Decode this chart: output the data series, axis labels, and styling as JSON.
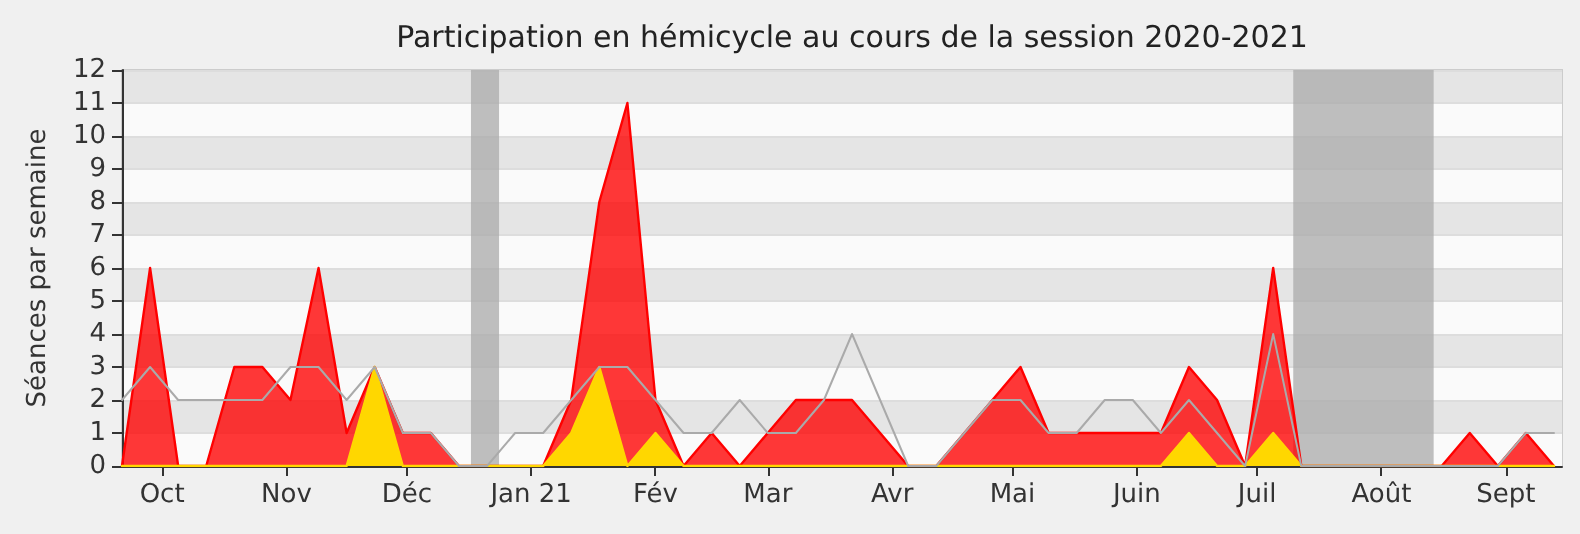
{
  "chart_data": {
    "type": "area",
    "title": "Participation en hémicycle au cours de la session 2020-2021",
    "ylabel": "Séances par semaine",
    "x": [
      "2020-09-21",
      "2020-09-28",
      "2020-10-05",
      "2020-10-12",
      "2020-10-19",
      "2020-10-26",
      "2020-11-02",
      "2020-11-09",
      "2020-11-16",
      "2020-11-23",
      "2020-11-30",
      "2020-12-07",
      "2020-12-14",
      "2020-12-21",
      "2020-12-28",
      "2021-01-04",
      "2021-01-11",
      "2021-01-18",
      "2021-01-25",
      "2021-02-01",
      "2021-02-08",
      "2021-02-15",
      "2021-02-22",
      "2021-03-01",
      "2021-03-08",
      "2021-03-15",
      "2021-03-22",
      "2021-03-29",
      "2021-04-05",
      "2021-04-12",
      "2021-04-19",
      "2021-04-26",
      "2021-05-03",
      "2021-05-10",
      "2021-05-17",
      "2021-05-24",
      "2021-05-31",
      "2021-06-07",
      "2021-06-14",
      "2021-06-21",
      "2021-06-28",
      "2021-07-05",
      "2021-07-12",
      "2021-07-19",
      "2021-07-26",
      "2021-08-02",
      "2021-08-09",
      "2021-08-16",
      "2021-08-23",
      "2021-08-30",
      "2021-09-06",
      "2021-09-13"
    ],
    "series": [
      {
        "color": "#ff0000",
        "values": [
          0,
          6,
          0,
          0,
          3,
          3,
          2,
          6,
          1,
          3,
          1,
          1,
          0,
          0,
          0,
          0,
          2,
          8,
          11,
          2,
          0,
          1,
          0,
          1,
          2,
          2,
          2,
          1,
          0,
          0,
          1,
          2,
          3,
          1,
          1,
          1,
          1,
          1,
          3,
          2,
          0,
          6,
          0,
          0,
          0,
          0,
          0,
          0,
          1,
          0,
          1,
          0
        ]
      },
      {
        "color": "#ffd700",
        "values": [
          0,
          0,
          0,
          0,
          0,
          0,
          0,
          0,
          0,
          3,
          0,
          0,
          0,
          0,
          0,
          0,
          1,
          3,
          0,
          1,
          0,
          0,
          0,
          0,
          0,
          0,
          0,
          0,
          0,
          0,
          0,
          0,
          0,
          0,
          0,
          0,
          0,
          0,
          1,
          0,
          0,
          1,
          0,
          0,
          0,
          0,
          0,
          0,
          0,
          0,
          0,
          0
        ]
      },
      {
        "type": "line",
        "color": "#aaaaaa",
        "values": [
          2,
          3,
          2,
          2,
          2,
          2,
          3,
          3,
          2,
          3,
          1,
          1,
          0,
          0,
          1,
          1,
          2,
          3,
          3,
          2,
          1,
          1,
          2,
          1,
          1,
          2,
          4,
          2,
          0,
          0,
          1,
          2,
          2,
          1,
          1,
          2,
          2,
          1,
          2,
          1,
          0,
          4,
          0,
          0,
          0,
          0,
          0,
          0,
          0,
          0,
          1,
          1
        ]
      }
    ],
    "xlim": [
      "2020-09-21",
      "2021-09-15"
    ],
    "xticks": [
      {
        "value": "2020-10-01",
        "label": "Oct"
      },
      {
        "value": "2020-11-01",
        "label": "Nov"
      },
      {
        "value": "2020-12-01",
        "label": "Déc"
      },
      {
        "value": "2021-01-01",
        "label": "Jan 21"
      },
      {
        "value": "2021-02-01",
        "label": "Fév"
      },
      {
        "value": "2021-03-01",
        "label": "Mar"
      },
      {
        "value": "2021-04-01",
        "label": "Avr"
      },
      {
        "value": "2021-05-01",
        "label": "Mai"
      },
      {
        "value": "2021-06-01",
        "label": "Juin"
      },
      {
        "value": "2021-07-01",
        "label": "Juil"
      },
      {
        "value": "2021-08-01",
        "label": "Août"
      },
      {
        "value": "2021-09-01",
        "label": "Sept"
      }
    ],
    "ylim": [
      0,
      12
    ],
    "yticks": [
      0,
      1,
      2,
      3,
      4,
      5,
      6,
      7,
      8,
      9,
      10,
      11,
      12
    ],
    "bands": [
      {
        "axis": "x",
        "from": "2020-12-17",
        "to": "2020-12-24",
        "color": "#aaaaaa"
      },
      {
        "axis": "x",
        "from": "2021-07-10",
        "to": "2021-08-14",
        "color": "#aaaaaa"
      }
    ],
    "grid": "y",
    "marker": "none",
    "line_style": "solid"
  }
}
